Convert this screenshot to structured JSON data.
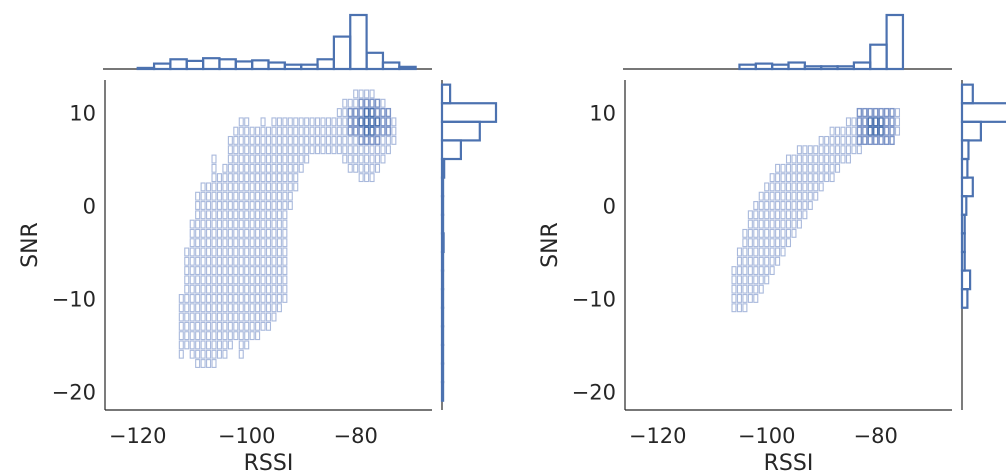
{
  "chart_data": [
    {
      "type": "scatter",
      "subtype": "2d-histogram-with-marginal-histograms",
      "xlabel": "RSSI",
      "ylabel": "SNR",
      "xlim": [
        -126,
        -66
      ],
      "ylim": [
        -22,
        13.5
      ],
      "xticks": [
        -120,
        -100,
        -80
      ],
      "yticks": [
        -20,
        -10,
        0,
        10
      ],
      "xtick_labels": [
        "−120",
        "−100",
        "−80"
      ],
      "ytick_labels": [
        "−20",
        "−10",
        "0",
        "10"
      ],
      "grid": false,
      "color": "#4c72b0",
      "cell_fill": "#ffffff",
      "cell_stroke": "#a9b9dc",
      "density_center": {
        "x": -77.5,
        "y": 9
      },
      "columns": [
        {
          "x": -112,
          "ymin": -16,
          "ymax": -10
        },
        {
          "x": -111,
          "ymin": -15,
          "ymax": -5
        },
        {
          "x": -110,
          "ymin": -16,
          "ymax": -2
        },
        {
          "x": -109,
          "ymin": -17,
          "ymax": 1
        },
        {
          "x": -108,
          "ymin": -17,
          "ymax": 2
        },
        {
          "x": -107,
          "ymin": -17,
          "ymax": 2
        },
        {
          "x": -106,
          "ymin": -17,
          "ymax": 5
        },
        {
          "x": -105,
          "ymin": -16,
          "ymax": 3
        },
        {
          "x": -104,
          "ymin": -16,
          "ymax": 4
        },
        {
          "x": -103,
          "ymin": -15,
          "ymax": 7
        },
        {
          "x": -102,
          "ymin": -14,
          "ymax": 8
        },
        {
          "x": -101,
          "ymin": -16,
          "ymax": 9
        },
        {
          "x": -100,
          "ymin": -15,
          "ymax": 9
        },
        {
          "x": -99,
          "ymin": -14,
          "ymax": 8
        },
        {
          "x": -98,
          "ymin": -14,
          "ymax": 8
        },
        {
          "x": -97,
          "ymin": -13,
          "ymax": 9
        },
        {
          "x": -96,
          "ymin": -13,
          "ymax": 8
        },
        {
          "x": -95,
          "ymin": -12,
          "ymax": 9
        },
        {
          "x": -94,
          "ymin": -11,
          "ymax": 9
        },
        {
          "x": -93,
          "ymin": -10,
          "ymax": 9
        },
        {
          "x": -92,
          "ymin": 0,
          "ymax": 9
        },
        {
          "x": -91,
          "ymin": 2,
          "ymax": 9
        },
        {
          "x": -90,
          "ymin": 4,
          "ymax": 9
        },
        {
          "x": -89,
          "ymin": 5,
          "ymax": 9
        },
        {
          "x": -88,
          "ymin": 6,
          "ymax": 9
        },
        {
          "x": -87,
          "ymin": 6,
          "ymax": 9
        },
        {
          "x": -86,
          "ymin": 6,
          "ymax": 9
        },
        {
          "x": -85,
          "ymin": 6,
          "ymax": 9
        },
        {
          "x": -84,
          "ymin": 6,
          "ymax": 9
        },
        {
          "x": -83,
          "ymin": 6,
          "ymax": 10
        },
        {
          "x": -82,
          "ymin": 5,
          "ymax": 11
        },
        {
          "x": -81,
          "ymin": 4,
          "ymax": 11
        },
        {
          "x": -80,
          "ymin": 4,
          "ymax": 12
        },
        {
          "x": -79,
          "ymin": 3,
          "ymax": 12
        },
        {
          "x": -78,
          "ymin": 3,
          "ymax": 12
        },
        {
          "x": -77,
          "ymin": 3,
          "ymax": 12
        },
        {
          "x": -76,
          "ymin": 4,
          "ymax": 11
        },
        {
          "x": -75,
          "ymin": 5,
          "ymax": 11
        },
        {
          "x": -74,
          "ymin": 6,
          "ymax": 10
        },
        {
          "x": -73,
          "ymin": 7,
          "ymax": 9
        }
      ],
      "x_marginal": {
        "bins": [
          -120,
          -117,
          -114,
          -111,
          -108,
          -105,
          -102,
          -99,
          -96,
          -93,
          -90,
          -87,
          -84,
          -81,
          -78,
          -75,
          -72,
          -69
        ],
        "counts": [
          0.02,
          0.1,
          0.18,
          0.15,
          0.2,
          0.18,
          0.14,
          0.16,
          0.12,
          0.08,
          0.08,
          0.18,
          0.6,
          1.0,
          0.3,
          0.12,
          0.04
        ]
      },
      "y_marginal": {
        "bins": [
          13,
          11,
          9,
          7,
          5,
          3,
          1,
          -1,
          -3,
          -5,
          -7,
          -9,
          -11,
          -13,
          -15,
          -17,
          -19,
          -21
        ],
        "counts": [
          0.15,
          1.0,
          0.7,
          0.35,
          0.04,
          0.02,
          0.02,
          0.02,
          0.03,
          0.02,
          0.02,
          0.02,
          0.02,
          0.02,
          0.02,
          0.02,
          0.02
        ]
      }
    },
    {
      "type": "scatter",
      "subtype": "2d-histogram-with-marginal-histograms",
      "xlabel": "RSSI",
      "ylabel": "SNR",
      "xlim": [
        -126,
        -66
      ],
      "ylim": [
        -22,
        13.5
      ],
      "xticks": [
        -120,
        -100,
        -80
      ],
      "yticks": [
        -20,
        -10,
        0,
        10
      ],
      "xtick_labels": [
        "−120",
        "−100",
        "−80"
      ],
      "ytick_labels": [
        "−20",
        "−10",
        "0",
        "10"
      ],
      "grid": false,
      "color": "#4c72b0",
      "cell_fill": "#ffffff",
      "cell_stroke": "#a9b9dc",
      "density_center": {
        "x": -80,
        "y": 8.5
      },
      "columns": [
        {
          "x": -106,
          "ymin": -11,
          "ymax": -7
        },
        {
          "x": -105,
          "ymin": -11,
          "ymax": -5
        },
        {
          "x": -104,
          "ymin": -11,
          "ymax": -3
        },
        {
          "x": -103,
          "ymin": -10,
          "ymax": -1
        },
        {
          "x": -102,
          "ymin": -10,
          "ymax": 0
        },
        {
          "x": -101,
          "ymin": -9,
          "ymax": 1
        },
        {
          "x": -100,
          "ymin": -8,
          "ymax": 2
        },
        {
          "x": -99,
          "ymin": -7,
          "ymax": 3
        },
        {
          "x": -98,
          "ymin": -6,
          "ymax": 4
        },
        {
          "x": -97,
          "ymin": -5,
          "ymax": 4
        },
        {
          "x": -96,
          "ymin": -4,
          "ymax": 5
        },
        {
          "x": -95,
          "ymin": -3,
          "ymax": 5
        },
        {
          "x": -94,
          "ymin": -2,
          "ymax": 6
        },
        {
          "x": -93,
          "ymin": -1,
          "ymax": 6
        },
        {
          "x": -92,
          "ymin": 0,
          "ymax": 6
        },
        {
          "x": -91,
          "ymin": 1,
          "ymax": 6
        },
        {
          "x": -90,
          "ymin": 2,
          "ymax": 7
        },
        {
          "x": -89,
          "ymin": 3,
          "ymax": 7
        },
        {
          "x": -88,
          "ymin": 3,
          "ymax": 8
        },
        {
          "x": -87,
          "ymin": 4,
          "ymax": 8
        },
        {
          "x": -86,
          "ymin": 5,
          "ymax": 8
        },
        {
          "x": -85,
          "ymin": 5,
          "ymax": 9
        },
        {
          "x": -84,
          "ymin": 6,
          "ymax": 9
        },
        {
          "x": -83,
          "ymin": 6,
          "ymax": 10
        },
        {
          "x": -82,
          "ymin": 7,
          "ymax": 10
        },
        {
          "x": -81,
          "ymin": 7,
          "ymax": 10
        },
        {
          "x": -80,
          "ymin": 7,
          "ymax": 10
        },
        {
          "x": -79,
          "ymin": 7,
          "ymax": 10
        },
        {
          "x": -78,
          "ymin": 7,
          "ymax": 10
        },
        {
          "x": -77,
          "ymin": 7,
          "ymax": 10
        },
        {
          "x": -76,
          "ymin": 8,
          "ymax": 10
        }
      ],
      "x_marginal": {
        "bins": [
          -105,
          -102,
          -99,
          -96,
          -93,
          -90,
          -87,
          -84,
          -81,
          -78,
          -75
        ],
        "counts": [
          0.08,
          0.1,
          0.08,
          0.12,
          0.05,
          0.05,
          0.05,
          0.12,
          0.45,
          1.0,
          0.4
        ]
      },
      "y_marginal": {
        "bins": [
          13,
          11,
          9,
          7,
          5,
          3,
          1,
          -1,
          -3,
          -5,
          -7,
          -9,
          -11
        ],
        "counts": [
          0.2,
          1.0,
          0.35,
          0.12,
          0.1,
          0.2,
          0.08,
          0.05,
          0.05,
          0.05,
          0.15,
          0.1
        ]
      }
    }
  ]
}
